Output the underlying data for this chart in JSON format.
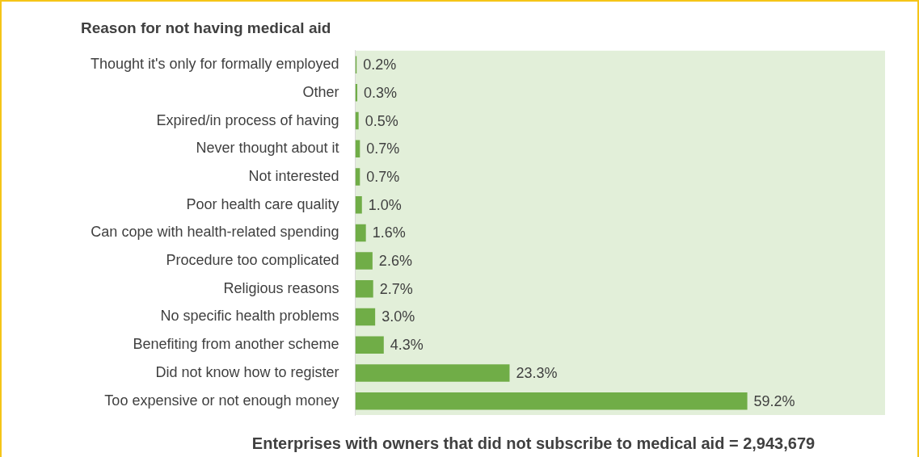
{
  "chart_data": {
    "type": "bar",
    "orientation": "horizontal",
    "title": "Reason for not having medical aid",
    "categories": [
      "Thought it's only for formally employed",
      "Other",
      "Expired/in process of having",
      "Never thought about it",
      "Not interested",
      "Poor health care quality",
      "Can cope with health-related spending",
      "Procedure too complicated",
      "Religious reasons",
      "No specific health problems",
      "Benefiting from another scheme",
      "Did not know how to register",
      "Too expensive or not enough money"
    ],
    "values": [
      0.2,
      0.3,
      0.5,
      0.7,
      0.7,
      1.0,
      1.6,
      2.6,
      2.7,
      3.0,
      4.3,
      23.3,
      59.2
    ],
    "value_labels": [
      "0.2%",
      "0.3%",
      "0.5%",
      "0.7%",
      "0.7%",
      "1.0%",
      "1.6%",
      "2.6%",
      "2.7%",
      "3.0%",
      "4.3%",
      "23.3%",
      "59.2%"
    ],
    "color": "#70ad47",
    "xlim": [
      0,
      80
    ],
    "tick_labels": "y",
    "legend": false,
    "annotations": [
      "Enterprises with owners that did not subscribe to medical aid = 2,943,679"
    ]
  }
}
